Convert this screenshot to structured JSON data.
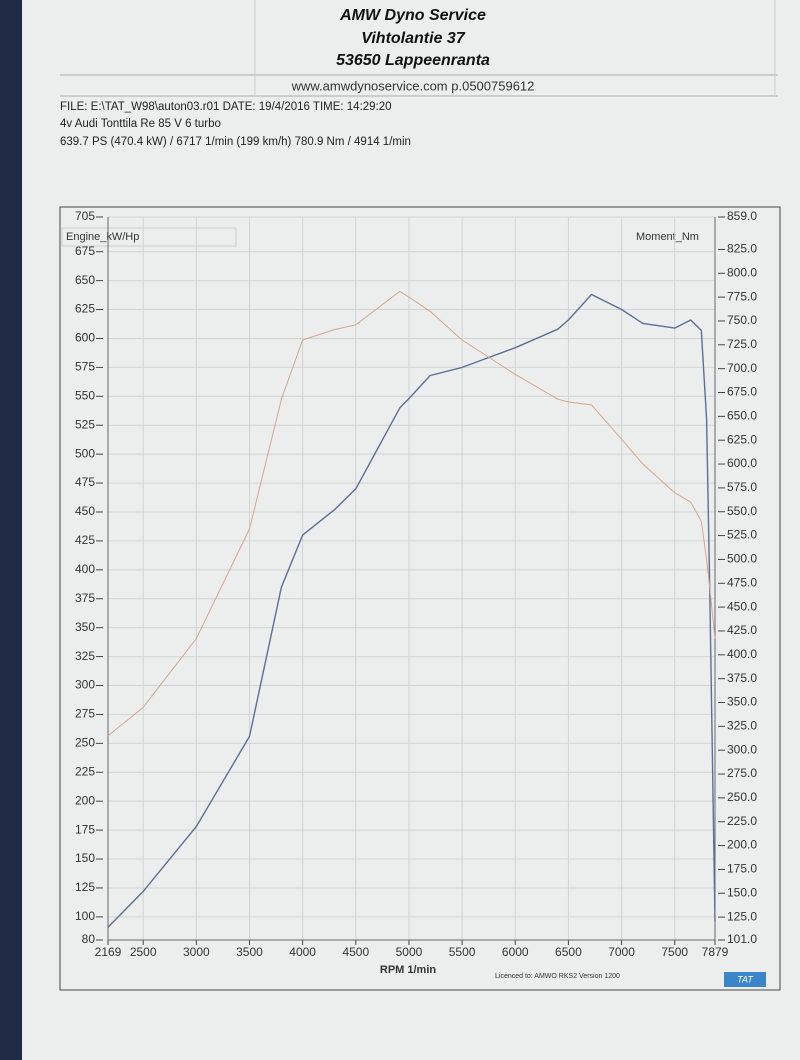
{
  "header": {
    "company": "AMW Dyno Service",
    "street": "Vihtolantie 37",
    "city": "53650 Lappeenranta",
    "contact": "www.amwdynoservice.com p.0500759612",
    "file": "FILE: E:\\TAT_W98\\auton03.r01  DATE: 19/4/2016  TIME: 14:29:20",
    "vehicle": "4v Audi Tonttila Re 85 V 6 turbo",
    "result": "639.7 PS  (470.4 kW) / 6717 1/min (199 km/h)     780.9 Nm / 4914 1/min"
  },
  "footer": {
    "license": "Licenced to: AMWO RKS2  Version 1200",
    "logo": "TAT"
  },
  "chart_data": {
    "type": "line",
    "xlabel": "RPM  1/min",
    "ylabel": "Engine_kW/Hp",
    "y2label": "Moment_Nm",
    "x": [
      2169,
      2500,
      3000,
      3500,
      3800,
      4000,
      4300,
      4500,
      4914,
      5000,
      5200,
      5500,
      6000,
      6400,
      6500,
      6717,
      7000,
      7200,
      7500,
      7650,
      7750,
      7800,
      7830,
      7879
    ],
    "series": [
      {
        "name": "Engine_kW/Hp",
        "color": "#5d6f98",
        "values": [
          91,
          122,
          178,
          256,
          385,
          430,
          452,
          470,
          540,
          548,
          568,
          575,
          592,
          608,
          616,
          638,
          625,
          613,
          609,
          616,
          607,
          530,
          380,
          96
        ]
      },
      {
        "name": "Moment_Nm",
        "color": "#d4a58f",
        "axis": "y2",
        "values": [
          315,
          345,
          417,
          532,
          668,
          730,
          741,
          746,
          781,
          775,
          760,
          730,
          694,
          668,
          665,
          662,
          626,
          600,
          570,
          560,
          540,
          500,
          470,
          417
        ]
      }
    ],
    "xlim": [
      2169,
      7879
    ],
    "xticks": [
      2169,
      2500,
      3000,
      3500,
      4000,
      4500,
      5000,
      5500,
      6000,
      6500,
      7000,
      7500,
      7879
    ],
    "ylim": [
      80,
      705
    ],
    "yticks": [
      80,
      100,
      125,
      150,
      175,
      200,
      225,
      250,
      275,
      300,
      325,
      350,
      375,
      400,
      425,
      450,
      475,
      500,
      525,
      550,
      575,
      600,
      625,
      650,
      675,
      705
    ],
    "y2lim": [
      101,
      859
    ],
    "y2ticks": [
      {
        "value": 101,
        "label": "101.0"
      },
      {
        "value": 125,
        "label": "125.0"
      },
      {
        "value": 150,
        "label": "150.0"
      },
      {
        "value": 175,
        "label": "175.0"
      },
      {
        "value": 200,
        "label": "200.0"
      },
      {
        "value": 225,
        "label": "225.0"
      },
      {
        "value": 250,
        "label": "250.0"
      },
      {
        "value": 275,
        "label": "275.0"
      },
      {
        "value": 300,
        "label": "300.0"
      },
      {
        "value": 325,
        "label": "325.0"
      },
      {
        "value": 350,
        "label": "350.0"
      },
      {
        "value": 375,
        "label": "375.0"
      },
      {
        "value": 400,
        "label": "400.0"
      },
      {
        "value": 425,
        "label": "425.0"
      },
      {
        "value": 450,
        "label": "450.0"
      },
      {
        "value": 475,
        "label": "475.0"
      },
      {
        "value": 500,
        "label": "500.0"
      },
      {
        "value": 525,
        "label": "525.0"
      },
      {
        "value": 550,
        "label": "550.0"
      },
      {
        "value": 575,
        "label": "575.0"
      },
      {
        "value": 600,
        "label": "600.0"
      },
      {
        "value": 625,
        "label": "625.0"
      },
      {
        "value": 650,
        "label": "650.0"
      },
      {
        "value": 675,
        "label": "675.0"
      },
      {
        "value": 700,
        "label": "700.0"
      },
      {
        "value": 725,
        "label": "725.0"
      },
      {
        "value": 750,
        "label": "750.0"
      },
      {
        "value": 775,
        "label": "775.0"
      },
      {
        "value": 800,
        "label": "800.0"
      },
      {
        "value": 825,
        "label": "825.0"
      },
      {
        "value": 859,
        "label": "859.0"
      }
    ],
    "grid": true
  }
}
